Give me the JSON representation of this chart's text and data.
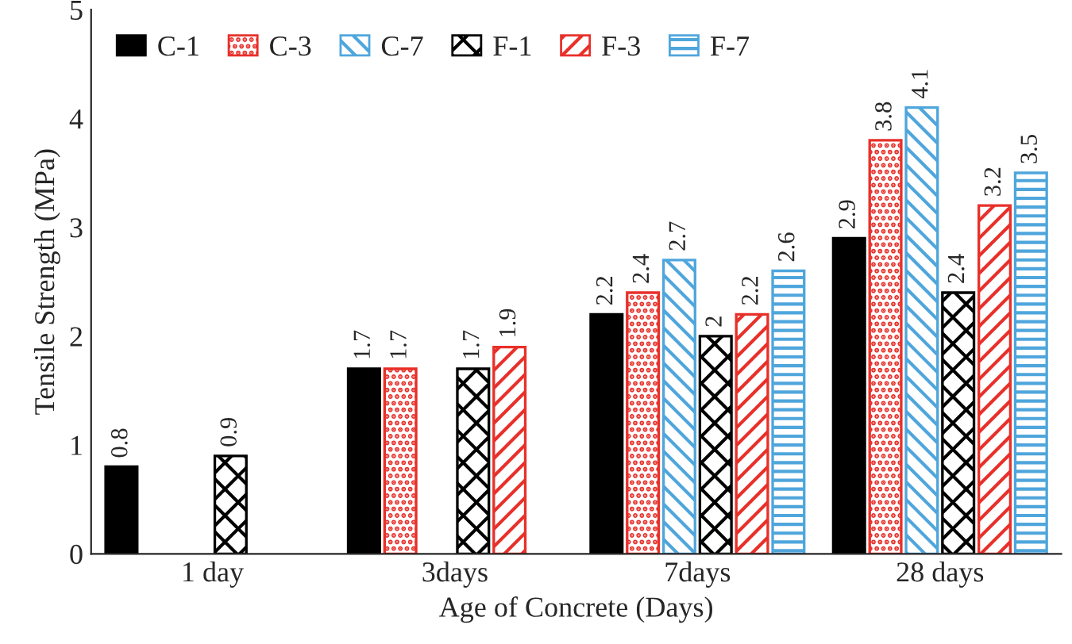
{
  "chart_data": {
    "type": "bar",
    "xlabel": "Age of Concrete (Days)",
    "ylabel": "Tensile Strength (MPa)",
    "categories": [
      "1 day",
      "3days",
      "7days",
      "28 days"
    ],
    "series": [
      {
        "name": "C-1",
        "color": "#000000",
        "values": [
          0.8,
          1.7,
          2.2,
          2.9
        ]
      },
      {
        "name": "C-3",
        "color": "#e8302a",
        "values": [
          null,
          1.7,
          2.4,
          3.8
        ]
      },
      {
        "name": "C-7",
        "color": "#4fa6dc",
        "values": [
          null,
          null,
          2.7,
          4.1
        ]
      },
      {
        "name": "F-1",
        "color": "#000000",
        "values": [
          0.9,
          1.7,
          2,
          2.4
        ]
      },
      {
        "name": "F-3",
        "color": "#e8302a",
        "values": [
          null,
          1.9,
          2.2,
          3.2
        ]
      },
      {
        "name": "F-7",
        "color": "#4fa6dc",
        "values": [
          null,
          null,
          2.6,
          3.5
        ]
      }
    ],
    "ylim": [
      0,
      5
    ],
    "yticks": [
      0,
      1,
      2,
      3,
      4,
      5
    ],
    "grid": false,
    "legend": "top left",
    "data_labels": true
  }
}
